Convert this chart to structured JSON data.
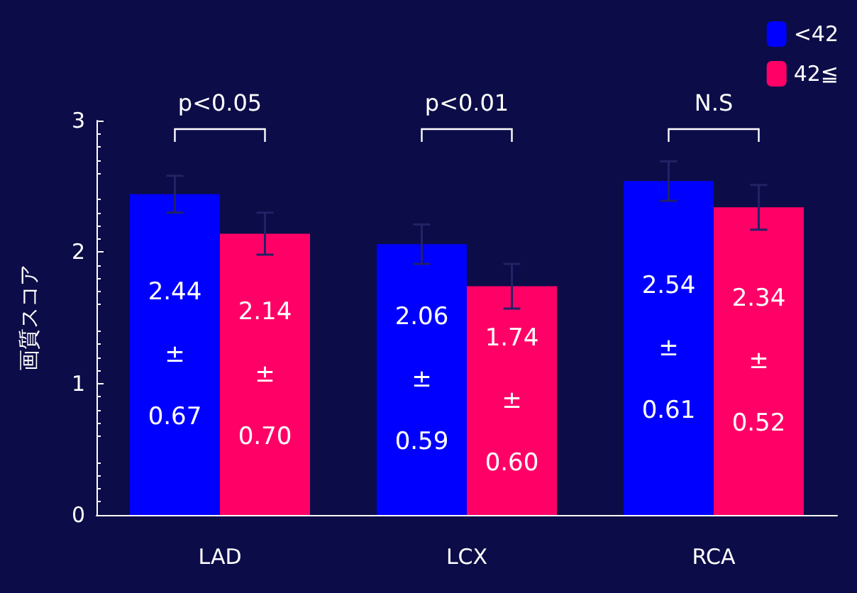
{
  "chart_data": {
    "type": "bar",
    "ylabel": "画質スコア",
    "categories": [
      "LAD",
      "LCX",
      "RCA"
    ],
    "series": [
      {
        "name": "<42",
        "color": "#0000ff",
        "values": [
          2.44,
          2.06,
          2.54
        ],
        "errors": [
          0.14,
          0.15,
          0.15
        ],
        "value_labels": [
          "2.44\n±\n0.67",
          "2.06\n±\n0.59",
          "2.54\n±\n0.61"
        ]
      },
      {
        "name": "42≦",
        "color": "#ff0066",
        "values": [
          2.14,
          1.74,
          2.34
        ],
        "errors": [
          0.16,
          0.17,
          0.17
        ],
        "value_labels": [
          "2.14\n±\n0.70",
          "1.74\n±\n0.60",
          "2.34\n±\n0.52"
        ]
      }
    ],
    "ylim": [
      0,
      3
    ],
    "yticks": [
      0,
      1,
      2,
      3
    ],
    "grid": false,
    "legend": "top right",
    "annotations": [
      "p<0.05",
      "p<0.01",
      "N.S"
    ]
  }
}
